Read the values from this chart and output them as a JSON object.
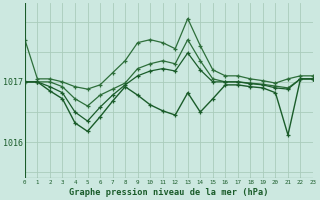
{
  "background_color": "#cce8e0",
  "grid_color": "#aaccbb",
  "line_color_dark": "#1a5c2a",
  "line_color_mid": "#2d6e3a",
  "title": "Graphe pression niveau de la mer (hPa)",
  "xlim": [
    0,
    23
  ],
  "ylim": [
    1015.4,
    1018.3
  ],
  "yticks": [
    1016,
    1017
  ],
  "x_hours": [
    0,
    1,
    2,
    3,
    4,
    5,
    6,
    7,
    8,
    9,
    10,
    11,
    12,
    13,
    14,
    15,
    16,
    17,
    18,
    19,
    20,
    21,
    22,
    23
  ],
  "series_top": [
    1017.7,
    1017.05,
    1017.05,
    1017.0,
    1016.92,
    1016.88,
    1016.95,
    1017.15,
    1017.35,
    1017.65,
    1017.7,
    1017.65,
    1017.55,
    1018.05,
    1017.6,
    1017.2,
    1017.1,
    1017.1,
    1017.05,
    1017.02,
    1016.98,
    1017.05,
    1017.1,
    1017.1
  ],
  "series_mid1": [
    1017.0,
    1017.0,
    1017.0,
    1016.92,
    1016.72,
    1016.6,
    1016.78,
    1016.88,
    1016.98,
    1017.22,
    1017.3,
    1017.35,
    1017.3,
    1017.7,
    1017.35,
    1017.05,
    1017.0,
    1017.0,
    1016.98,
    1016.96,
    1016.93,
    1016.9,
    1017.05,
    1017.05
  ],
  "series_mid2": [
    1017.0,
    1017.0,
    1016.92,
    1016.82,
    1016.5,
    1016.35,
    1016.58,
    1016.78,
    1016.95,
    1017.1,
    1017.18,
    1017.22,
    1017.18,
    1017.48,
    1017.2,
    1017.0,
    1017.0,
    1017.0,
    1016.97,
    1016.95,
    1016.9,
    1016.88,
    1017.05,
    1017.05
  ],
  "series_bot": [
    1017.0,
    1017.0,
    1016.85,
    1016.72,
    1016.32,
    1016.18,
    1016.42,
    1016.68,
    1016.92,
    1016.78,
    1016.62,
    1016.52,
    1016.45,
    1016.82,
    1016.5,
    1016.72,
    1016.95,
    1016.95,
    1016.92,
    1016.9,
    1016.82,
    1016.12,
    1017.05,
    1017.05
  ]
}
